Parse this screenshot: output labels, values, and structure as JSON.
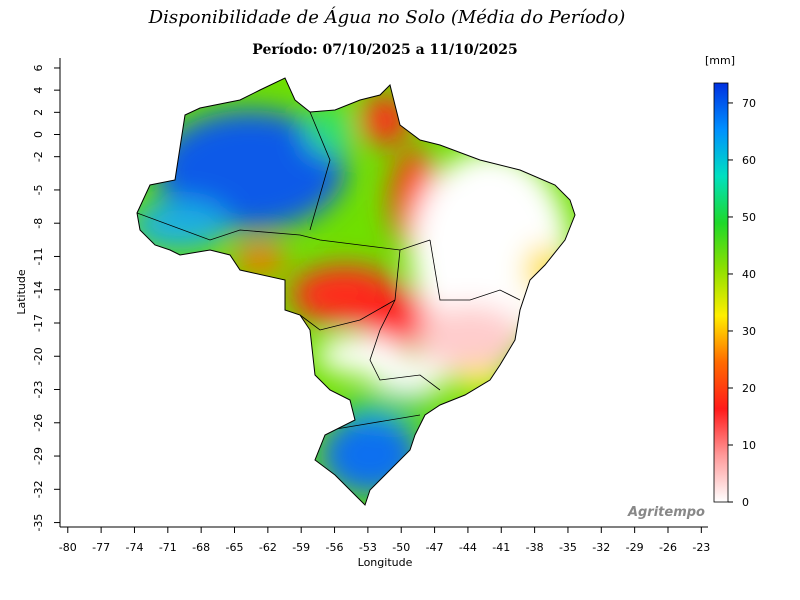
{
  "header": {
    "title": "Disponibilidade de Água no Solo (Média do Período)",
    "subtitle": "Período: 07/10/2025 a 11/10/2025"
  },
  "map": {
    "xlabel": "Longitude",
    "ylabel": "Latitude",
    "xlim": [
      -80.7,
      -22.4
    ],
    "xticks": [
      -80,
      -77,
      -74,
      -71,
      -68,
      -65,
      -62,
      -59,
      -56,
      -53,
      -50,
      -47,
      -44,
      -41,
      -38,
      -35,
      -32,
      -29,
      -26,
      -23
    ],
    "ylim": [
      -35.4,
      6.9
    ],
    "yticks": [
      6,
      4,
      2,
      0,
      -2,
      -5,
      -8,
      -11,
      -14,
      -17,
      -20,
      -23,
      -26,
      -29,
      -32,
      -35
    ],
    "colorbar": {
      "unit": "[mm]",
      "lim": [
        0,
        73.5
      ],
      "ticks": [
        0,
        10,
        20,
        30,
        40,
        50,
        60,
        70
      ],
      "colors": [
        "#ffffff",
        "#ff9a9a",
        "#ff1a1a",
        "#ff6a00",
        "#ffee00",
        "#8fe000",
        "#1ed82a",
        "#00e0c0",
        "#0090ff",
        "#0030e0"
      ]
    },
    "credit": "Agritempo"
  }
}
